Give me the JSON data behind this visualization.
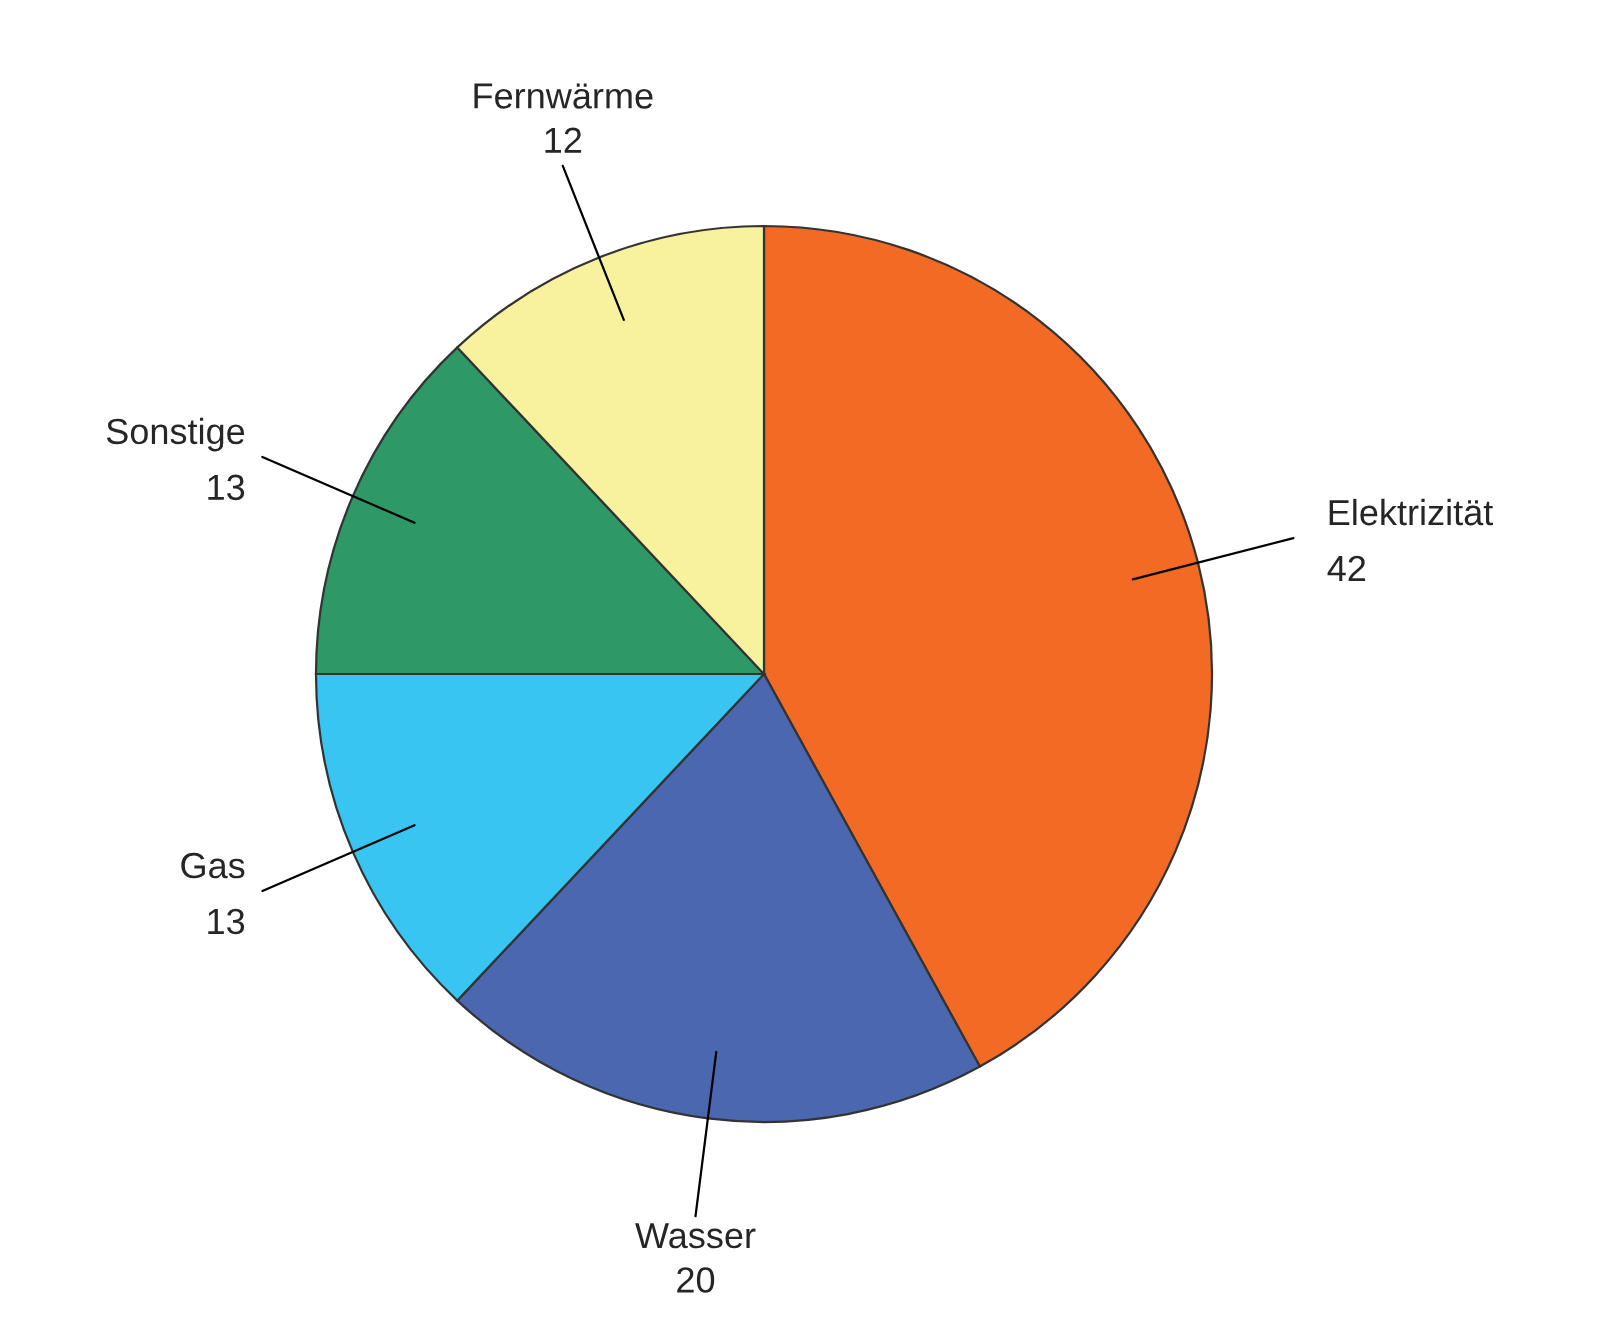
{
  "chart_data": {
    "type": "pie",
    "categories": [
      "Elektrizität",
      "Wasser",
      "Gas",
      "Sonstige",
      "Fernwärme"
    ],
    "values": [
      42,
      20,
      13,
      13,
      12
    ],
    "colors": [
      "#f26a24",
      "#4a67b0",
      "#38c5f2",
      "#2e9966",
      "#f8f29f"
    ],
    "data_labels": true
  }
}
